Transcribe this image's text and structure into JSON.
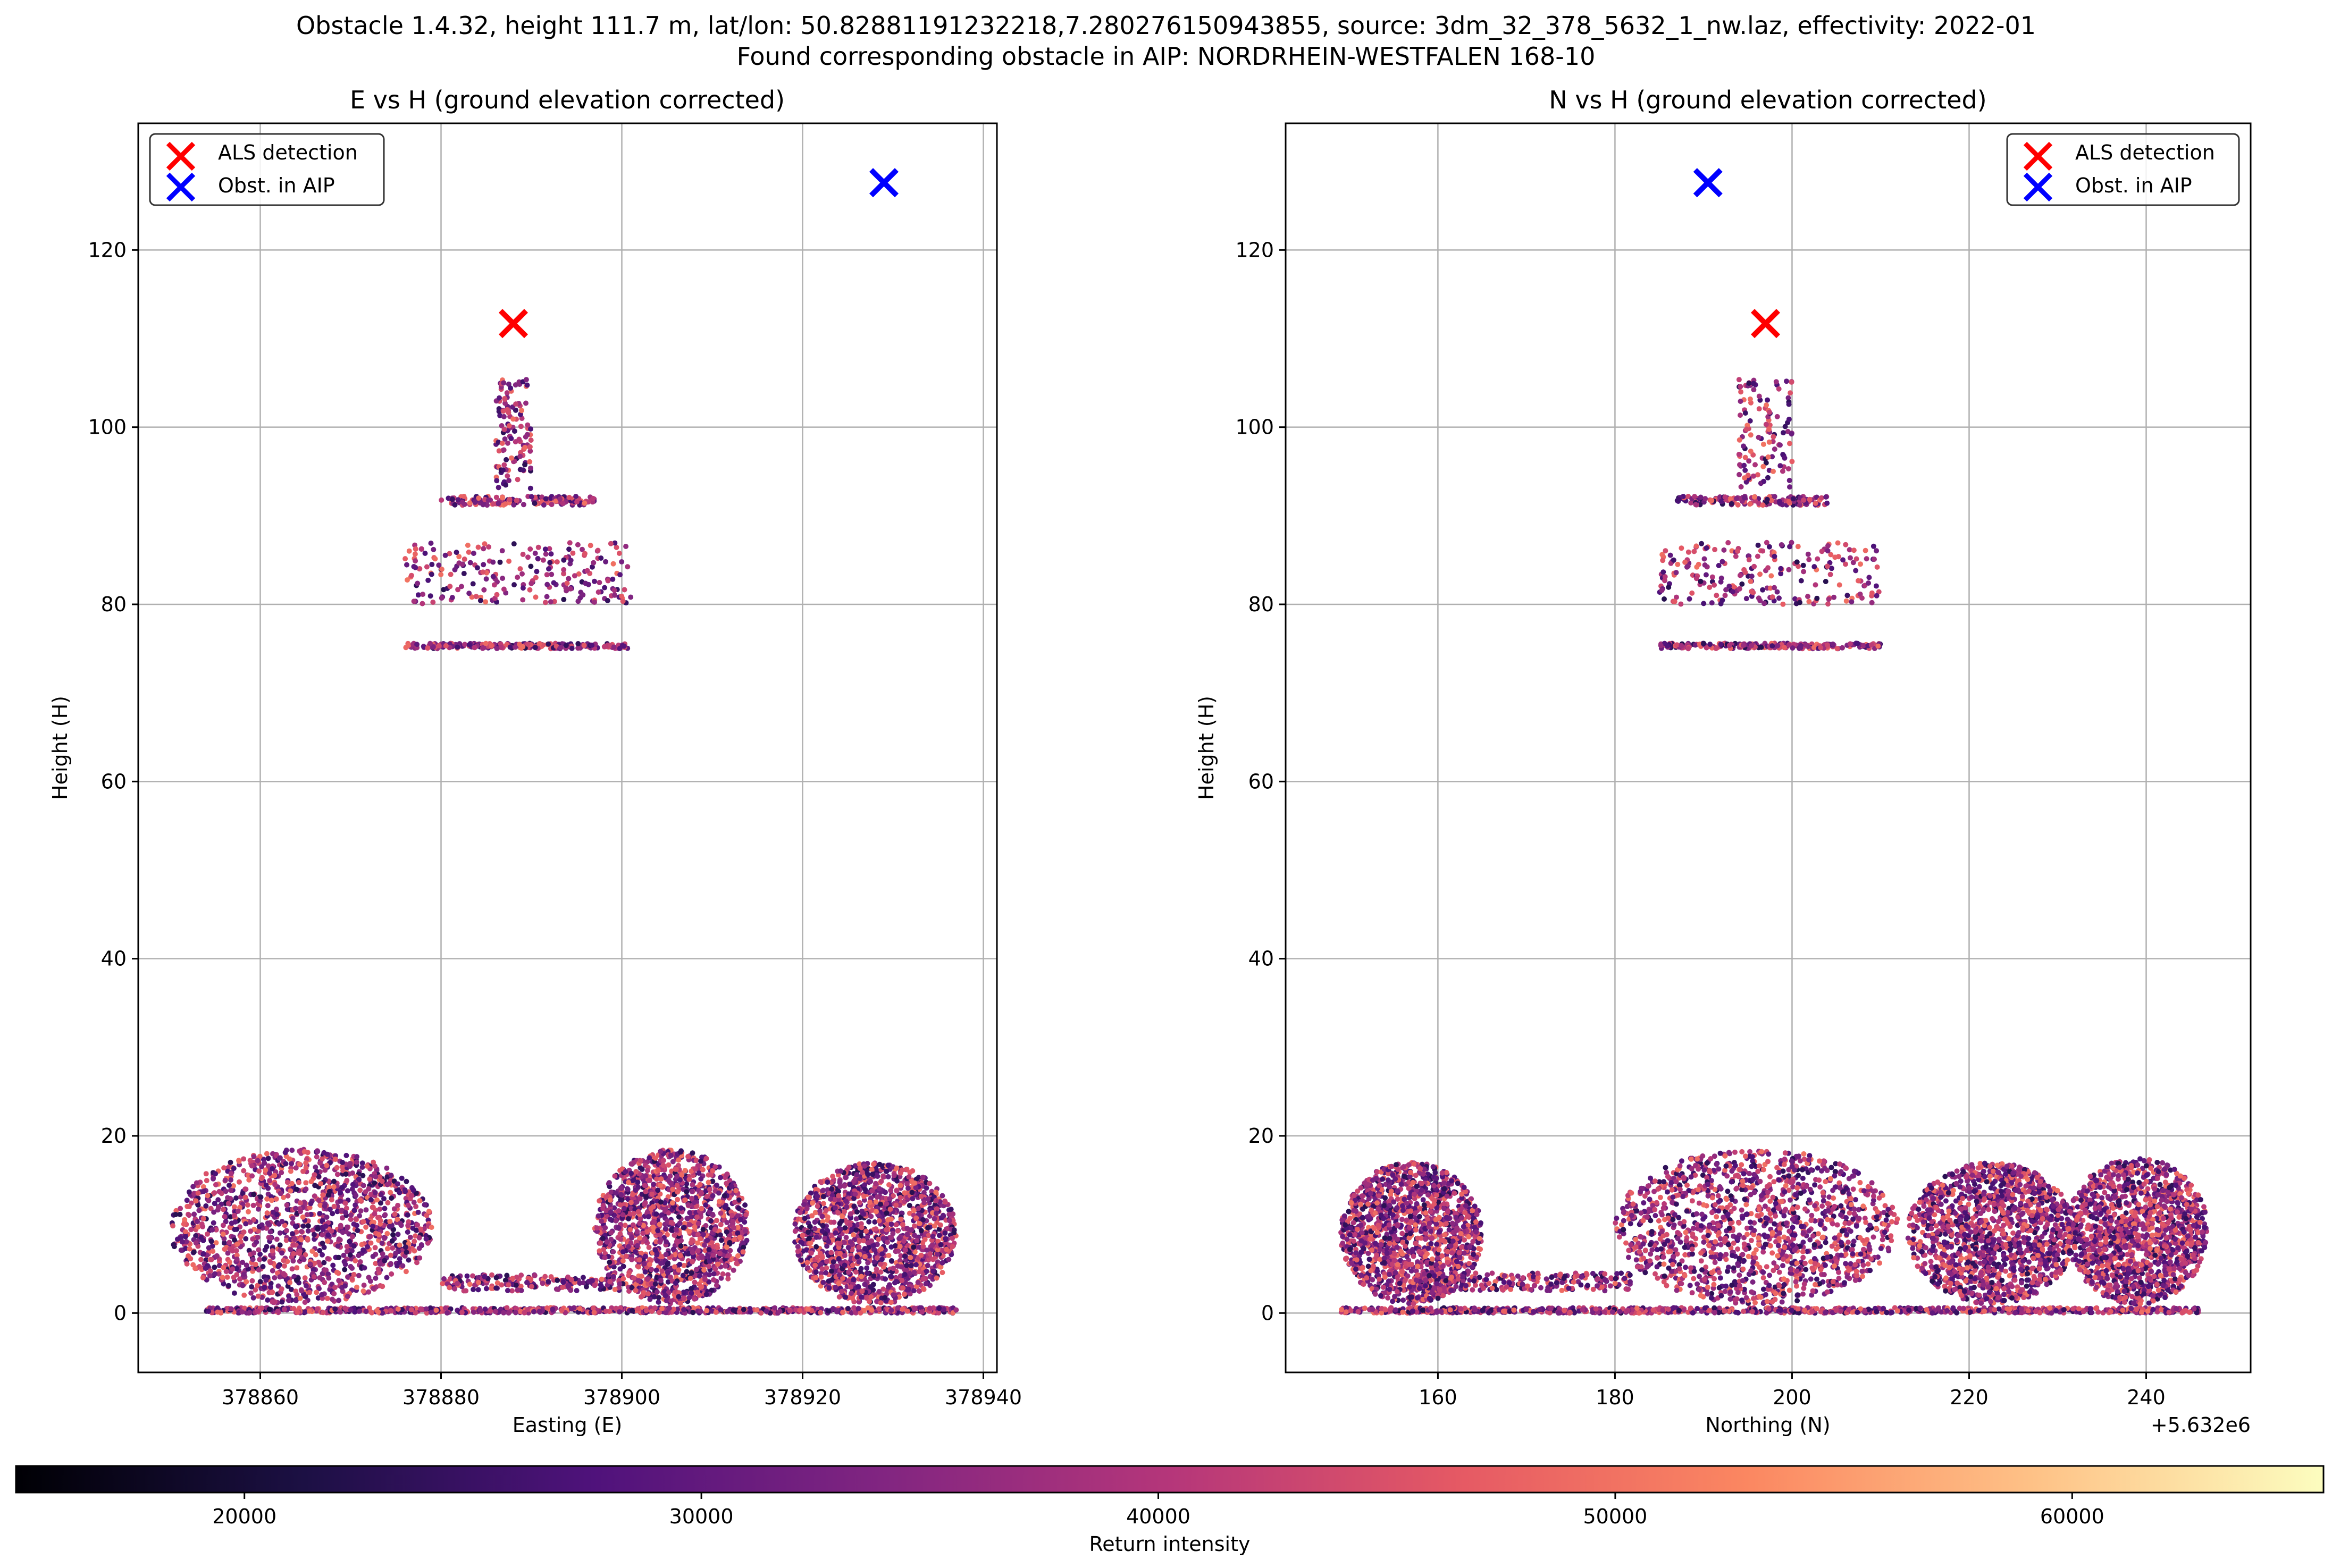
{
  "chart_data": [
    {
      "type": "scatter",
      "title": "E vs H (ground elevation corrected)",
      "xlabel": "Easting (E)",
      "ylabel": "Height (H)",
      "xlim": [
        378846.5,
        378941.5
      ],
      "ylim": [
        -6.7,
        134.3
      ],
      "xticks": [
        378860,
        378880,
        378900,
        378920,
        378940
      ],
      "xtick_labels": [
        "378860",
        "378880",
        "378900",
        "378920",
        "378940"
      ],
      "xoffset_label": "",
      "yticks": [
        0,
        20,
        40,
        60,
        80,
        100,
        120
      ],
      "ytick_labels": [
        "0",
        "20",
        "40",
        "60",
        "80",
        "100",
        "120"
      ],
      "grid": true,
      "legend": "top-left",
      "series": [
        {
          "name": "ALS detection",
          "marker": "x",
          "color": "#ff0000",
          "x": [
            378888
          ],
          "y": [
            111.7
          ]
        },
        {
          "name": "Obst. in AIP",
          "marker": "x",
          "color": "#0000ff",
          "x": [
            378929
          ],
          "y": [
            127.6
          ]
        }
      ],
      "point_clusters": [
        {
          "shape": "ellipse",
          "x_range": [
            378850,
            378879
          ],
          "y_range": [
            0,
            17.5
          ]
        },
        {
          "shape": "ellipse",
          "x_range": [
            378897,
            378914
          ],
          "y_range": [
            0,
            17.5
          ]
        },
        {
          "shape": "ellipse",
          "x_range": [
            378919,
            378937
          ],
          "y_range": [
            0,
            16
          ]
        },
        {
          "shape": "band",
          "x_range": [
            378854,
            378937
          ],
          "y_range": [
            0,
            0.6
          ]
        },
        {
          "shape": "band",
          "x_range": [
            378880,
            378900
          ],
          "y_range": [
            2.5,
            4.3
          ]
        },
        {
          "shape": "band",
          "x_range": [
            378876,
            378901
          ],
          "y_range": [
            75,
            75.6
          ]
        },
        {
          "shape": "band",
          "x_range": [
            378876,
            378901
          ],
          "y_range": [
            80,
            87
          ]
        },
        {
          "shape": "band",
          "x_range": [
            378880,
            378897
          ],
          "y_range": [
            91.2,
            92.2
          ]
        },
        {
          "shape": "band",
          "x_range": [
            378886,
            378890
          ],
          "y_range": [
            93,
            105.5
          ]
        }
      ]
    },
    {
      "type": "scatter",
      "title": "N vs H (ground elevation corrected)",
      "xlabel": "Northing (N)",
      "ylabel": "Height (H)",
      "xlim": [
        5632142.8,
        5632251.8
      ],
      "ylim": [
        -6.7,
        134.3
      ],
      "xticks": [
        5632160,
        5632180,
        5632200,
        5632220,
        5632240
      ],
      "xtick_labels": [
        "160",
        "180",
        "200",
        "220",
        "240"
      ],
      "xoffset_label": "+5.632e6",
      "yticks": [
        0,
        20,
        40,
        60,
        80,
        100,
        120
      ],
      "ytick_labels": [
        "0",
        "20",
        "40",
        "60",
        "80",
        "100",
        "120"
      ],
      "grid": true,
      "legend": "top-right",
      "series": [
        {
          "name": "ALS detection",
          "marker": "x",
          "color": "#ff0000",
          "x": [
            5632197
          ],
          "y": [
            111.7
          ]
        },
        {
          "name": "Obst. in AIP",
          "marker": "x",
          "color": "#0000ff",
          "x": [
            5632190.5
          ],
          "y": [
            127.6
          ]
        }
      ],
      "point_clusters": [
        {
          "shape": "ellipse",
          "x_range": [
            5632149,
            5632165
          ],
          "y_range": [
            0,
            16
          ]
        },
        {
          "shape": "ellipse",
          "x_range": [
            5632180,
            5632212
          ],
          "y_range": [
            0,
            17.5
          ]
        },
        {
          "shape": "ellipse",
          "x_range": [
            5632213,
            5632232
          ],
          "y_range": [
            0,
            16
          ]
        },
        {
          "shape": "ellipse",
          "x_range": [
            5632231,
            5632247
          ],
          "y_range": [
            0,
            16.5
          ]
        },
        {
          "shape": "band",
          "x_range": [
            5632149,
            5632246
          ],
          "y_range": [
            0,
            0.6
          ]
        },
        {
          "shape": "band",
          "x_range": [
            5632157,
            5632182
          ],
          "y_range": [
            2.5,
            4.5
          ]
        },
        {
          "shape": "band",
          "x_range": [
            5632185,
            5632210
          ],
          "y_range": [
            75,
            75.6
          ]
        },
        {
          "shape": "band",
          "x_range": [
            5632185,
            5632210
          ],
          "y_range": [
            80,
            87
          ]
        },
        {
          "shape": "band",
          "x_range": [
            5632187,
            5632204
          ],
          "y_range": [
            91.2,
            92.2
          ]
        },
        {
          "shape": "band",
          "x_range": [
            5632194,
            5632200
          ],
          "y_range": [
            93,
            105.5
          ]
        }
      ]
    }
  ],
  "figure": {
    "title_line1": "Obstacle 1.4.32, height 111.7 m, lat/lon: 50.82881191232218,7.280276150943855, source: 3dm_32_378_5632_1_nw.laz, effectivity: 2022-01",
    "title_line2": "Found corresponding obstacle in AIP: NORDRHEIN-WESTFALEN 168-10"
  },
  "colorbar": {
    "label": "Return intensity",
    "range": [
      15000,
      65500
    ],
    "ticks": [
      20000,
      30000,
      40000,
      50000,
      60000
    ],
    "tick_labels": [
      "20000",
      "30000",
      "40000",
      "50000",
      "60000"
    ],
    "colormap": "magma",
    "colormap_stops": [
      "#000004",
      "#1c1044",
      "#4f127b",
      "#812581",
      "#b5367a",
      "#e55964",
      "#fb8761",
      "#fec287",
      "#fcfdbf"
    ]
  }
}
